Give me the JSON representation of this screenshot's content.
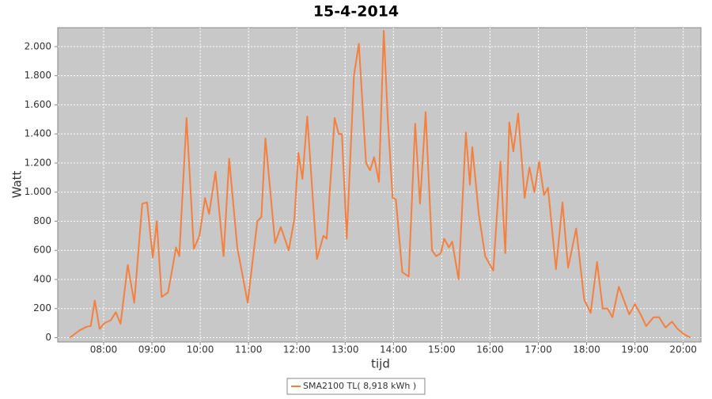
{
  "chart_data": {
    "type": "line",
    "title": "15-4-2014",
    "x_label": "tijd",
    "y_label": "Watt",
    "x": [
      "07:18",
      "07:30",
      "07:39",
      "07:44",
      "07:49",
      "07:55",
      "08:01",
      "08:09",
      "08:15",
      "08:21",
      "08:30",
      "08:38",
      "08:48",
      "08:54",
      "09:01",
      "09:06",
      "09:12",
      "09:20",
      "09:30",
      "09:34",
      "09:43",
      "09:52",
      "09:59",
      "10:06",
      "10:11",
      "10:19",
      "10:29",
      "10:36",
      "10:46",
      "10:59",
      "11:11",
      "11:16",
      "11:21",
      "11:33",
      "11:40",
      "11:50",
      "11:57",
      "12:02",
      "12:07",
      "12:13",
      "12:25",
      "12:33",
      "12:37",
      "12:47",
      "12:52",
      "12:56",
      "13:02",
      "13:11",
      "13:17",
      "13:26",
      "13:31",
      "13:36",
      "13:42",
      "13:48",
      "13:53",
      "13:59",
      "14:03",
      "14:11",
      "14:19",
      "14:27",
      "14:33",
      "14:40",
      "14:48",
      "14:53",
      "14:59",
      "15:03",
      "15:09",
      "15:13",
      "15:21",
      "15:30",
      "15:35",
      "15:38",
      "15:46",
      "15:54",
      "16:04",
      "16:13",
      "16:19",
      "16:24",
      "16:29",
      "16:35",
      "16:43",
      "16:49",
      "16:55",
      "17:01",
      "17:07",
      "17:12",
      "17:22",
      "17:30",
      "17:37",
      "17:47",
      "17:57",
      "18:05",
      "18:13",
      "18:20",
      "18:26",
      "18:32",
      "18:40",
      "18:53",
      "19:00",
      "19:08",
      "19:14",
      "19:23",
      "19:30",
      "19:38",
      "19:46",
      "19:53",
      "20:02",
      "20:09"
    ],
    "series": [
      {
        "name": "SMA2100 TL( 8,918 kWh )",
        "color": "#f5803e",
        "values": [
          0,
          50,
          75,
          80,
          255,
          60,
          100,
          120,
          175,
          95,
          500,
          240,
          920,
          930,
          550,
          800,
          280,
          310,
          620,
          560,
          1510,
          610,
          700,
          960,
          850,
          1140,
          560,
          1230,
          620,
          240,
          800,
          830,
          1370,
          650,
          760,
          600,
          820,
          1270,
          1090,
          1520,
          540,
          700,
          680,
          1510,
          1400,
          1400,
          680,
          1800,
          2020,
          1200,
          1150,
          1240,
          1070,
          2110,
          1500,
          960,
          950,
          450,
          420,
          1470,
          920,
          1550,
          600,
          560,
          580,
          680,
          620,
          660,
          400,
          1410,
          1050,
          1310,
          850,
          560,
          460,
          1210,
          580,
          1480,
          1280,
          1540,
          960,
          1170,
          1000,
          1210,
          980,
          1030,
          470,
          930,
          480,
          750,
          260,
          170,
          520,
          200,
          200,
          140,
          350,
          160,
          230,
          150,
          80,
          140,
          140,
          70,
          110,
          60,
          20,
          0
        ]
      }
    ],
    "xlim": [
      "07:03",
      "20:22"
    ],
    "xticks": [
      "08:00",
      "09:00",
      "10:00",
      "11:00",
      "12:00",
      "13:00",
      "14:00",
      "15:00",
      "16:00",
      "17:00",
      "18:00",
      "19:00",
      "20:00"
    ],
    "ylim": [
      -30,
      2130
    ],
    "yticks": [
      0,
      200,
      400,
      600,
      800,
      {
        "value": 1000,
        "label": "1.000"
      },
      {
        "value": 1200,
        "label": "1.200"
      },
      {
        "value": 1400,
        "label": "1.400"
      },
      {
        "value": 1600,
        "label": "1.600"
      },
      {
        "value": 1800,
        "label": "1.800"
      },
      {
        "value": 2000,
        "label": "2.000"
      }
    ],
    "grid": true
  }
}
